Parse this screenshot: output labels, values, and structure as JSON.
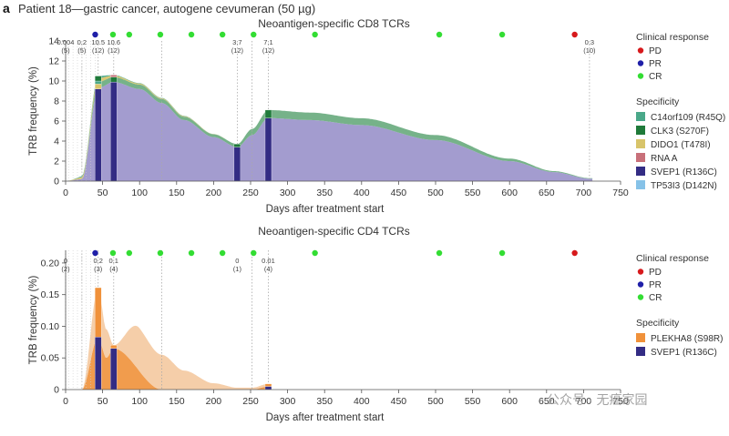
{
  "figure": {
    "panel_label": "a",
    "title": "Patient 18—gastric cancer, autogene cevumeran (50 µg)",
    "watermark": "公众号 · 无癌家园"
  },
  "colors": {
    "PD": "#d7191c",
    "PR": "#1f1fa8",
    "CR": "#33dd33",
    "C14orf109 (R45Q)": "#4aa889",
    "CLK3 (S270F)": "#1f7a3a",
    "DIDO1 (T478I)": "#d8c46a",
    "RNA A": "#c8707a",
    "SVEP1 (R136C)": "#332c84",
    "TP53I3 (D142N)": "#86c2e8",
    "PLEKHA8 (S98R)": "#f0913a",
    "svep_fill": "#9e97cc",
    "cd8_green_fill": "#6fae83",
    "plekha_fill": "#f4c9a0"
  },
  "legends": {
    "cd8": {
      "response_title": "Clinical response",
      "response_items": [
        "PD",
        "PR",
        "CR"
      ],
      "specificity_title": "Specificity",
      "specificity_items": [
        "C14orf109 (R45Q)",
        "CLK3 (S270F)",
        "DIDO1 (T478I)",
        "RNA A",
        "SVEP1 (R136C)",
        "TP53I3 (D142N)"
      ]
    },
    "cd4": {
      "response_title": "Clinical response",
      "response_items": [
        "PD",
        "PR",
        "CR"
      ],
      "specificity_title": "Specificity",
      "specificity_items": [
        "PLEKHA8 (S98R)",
        "SVEP1 (R136C)"
      ]
    }
  },
  "chart_data": [
    {
      "type": "area",
      "title": "Neoantigen-specific CD8 TCRs",
      "xlabel": "Days after treatment start",
      "ylabel": "TRB frequency (%)",
      "xlim": [
        0,
        750
      ],
      "ylim": [
        0,
        14
      ],
      "xticks": [
        0,
        50,
        100,
        150,
        200,
        250,
        300,
        350,
        400,
        450,
        500,
        550,
        600,
        650,
        700,
        750
      ],
      "yticks": [
        0,
        2,
        4,
        6,
        8,
        10,
        12,
        14
      ],
      "response_markers": [
        {
          "day": 40,
          "response": "PR"
        },
        {
          "day": 64,
          "response": "CR"
        },
        {
          "day": 86,
          "response": "CR"
        },
        {
          "day": 128,
          "response": "CR"
        },
        {
          "day": 170,
          "response": "CR"
        },
        {
          "day": 212,
          "response": "CR"
        },
        {
          "day": 254,
          "response": "CR"
        },
        {
          "day": 337,
          "response": "CR"
        },
        {
          "day": 505,
          "response": "CR"
        },
        {
          "day": 590,
          "response": "CR"
        },
        {
          "day": 688,
          "response": "PD"
        }
      ],
      "annotations": [
        {
          "day": 0,
          "value": "0.004",
          "count": "(5)"
        },
        {
          "day": 22,
          "value": "0.2",
          "count": "(5)"
        },
        {
          "day": 44,
          "value": "10.5",
          "count": "(12)"
        },
        {
          "day": 65,
          "value": "10.6",
          "count": "(12)"
        },
        {
          "day": 232,
          "value": "3.7",
          "count": "(12)"
        },
        {
          "day": 274,
          "value": "7.1",
          "count": "(12)"
        },
        {
          "day": 708,
          "value": "0.3",
          "count": "(10)"
        }
      ],
      "sample_days": [
        0,
        22,
        44,
        65,
        130,
        232,
        252,
        274,
        708
      ],
      "series": [
        {
          "name": "SVEP1 (R136C)",
          "x": [
            0,
            22,
            44,
            65,
            100,
            130,
            160,
            200,
            232,
            252,
            274,
            330,
            400,
            500,
            600,
            660,
            708
          ],
          "values": [
            0.004,
            0.2,
            9.3,
            9.9,
            9.2,
            7.8,
            6.1,
            4.4,
            3.4,
            4.6,
            6.3,
            6.1,
            5.6,
            4.1,
            2.0,
            0.9,
            0.25
          ]
        },
        {
          "name": "CLK3 (S270F)",
          "x": [
            0,
            22,
            44,
            65,
            100,
            130,
            160,
            200,
            232,
            252,
            274,
            330,
            400,
            500,
            600,
            660,
            708
          ],
          "values": [
            0,
            0,
            0.6,
            0.5,
            0.45,
            0.4,
            0.33,
            0.28,
            0.3,
            0.6,
            0.8,
            0.75,
            0.68,
            0.5,
            0.25,
            0.1,
            0.05
          ]
        },
        {
          "name": "DIDO1 (T478I)",
          "x": [
            0,
            44,
            65,
            100,
            130,
            232,
            274,
            708
          ],
          "values": [
            0,
            0.4,
            0.15,
            0.1,
            0.08,
            0,
            0,
            0
          ]
        },
        {
          "name": "C14orf109 (R45Q)",
          "x": [
            0,
            44,
            65,
            100,
            130,
            232,
            274,
            708
          ],
          "values": [
            0,
            0.2,
            0.05,
            0.04,
            0.03,
            0,
            0,
            0
          ]
        }
      ]
    },
    {
      "type": "area",
      "title": "Neoantigen-specific CD4 TCRs",
      "xlabel": "Days after treatment start",
      "ylabel": "TRB frequency (%)",
      "xlim": [
        0,
        750
      ],
      "ylim": [
        0,
        0.22
      ],
      "xticks": [
        0,
        50,
        100,
        150,
        200,
        250,
        300,
        350,
        400,
        450,
        500,
        550,
        600,
        650,
        700,
        750
      ],
      "yticks": [
        0,
        0.05,
        0.1,
        0.15,
        0.2
      ],
      "ytick_labels": [
        "0",
        "0.05",
        "0.10",
        "0.15",
        "0.20"
      ],
      "response_markers": [
        {
          "day": 40,
          "response": "PR"
        },
        {
          "day": 64,
          "response": "CR"
        },
        {
          "day": 86,
          "response": "CR"
        },
        {
          "day": 128,
          "response": "CR"
        },
        {
          "day": 170,
          "response": "CR"
        },
        {
          "day": 212,
          "response": "CR"
        },
        {
          "day": 254,
          "response": "CR"
        },
        {
          "day": 337,
          "response": "CR"
        },
        {
          "day": 505,
          "response": "CR"
        },
        {
          "day": 590,
          "response": "CR"
        },
        {
          "day": 688,
          "response": "PD"
        }
      ],
      "annotations": [
        {
          "day": 0,
          "value": "0",
          "count": "(2)"
        },
        {
          "day": 44,
          "value": "0.2",
          "count": "(3)"
        },
        {
          "day": 65,
          "value": "0.1",
          "count": "(4)"
        },
        {
          "day": 232,
          "value": "0",
          "count": "(1)"
        },
        {
          "day": 274,
          "value": "0.01",
          "count": "(4)"
        }
      ],
      "sample_days": [
        0,
        22,
        44,
        65,
        130,
        252,
        274
      ],
      "series": [
        {
          "name": "SVEP1 (R136C)",
          "x": [
            0,
            22,
            44,
            55,
            65,
            130,
            232,
            252,
            274
          ],
          "values": [
            0,
            0,
            0.083,
            0.05,
            0.065,
            0,
            0,
            0,
            0.005
          ]
        },
        {
          "name": "PLEKHA8 (S98R)",
          "x": [
            0,
            22,
            44,
            55,
            65,
            100,
            130,
            160,
            200,
            232,
            252,
            274
          ],
          "values": [
            0,
            0,
            0.078,
            0.045,
            0.005,
            0.068,
            0.055,
            0.03,
            0.01,
            0.003,
            0.003,
            0.004
          ]
        }
      ]
    }
  ]
}
